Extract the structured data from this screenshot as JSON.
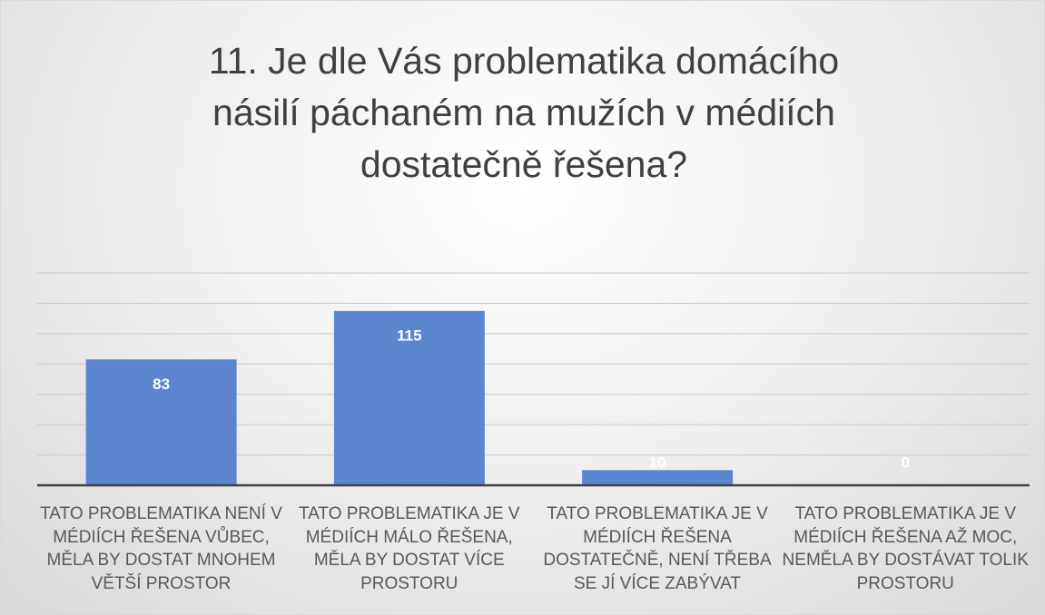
{
  "chart_data": {
    "type": "bar",
    "title": "11. Je dle Vás problematika domácího násilí páchaném na mužích v médiích dostatečně řešena?",
    "categories": [
      "TATO PROBLEMATIKA NENÍ V MÉDIÍCH ŘEŠENA  VŮBEC, MĚLA BY DOSTAT MNOHEM VĚTŠÍ PROSTOR",
      "TATO PROBLEMATIKA JE V MÉDIÍCH MÁLO ŘEŠENA, MĚLA BY DOSTAT VÍCE PROSTORU",
      "TATO PROBLEMATIKA JE V MÉDIÍCH ŘEŠENA DOSTATEČNĚ, NENÍ TŘEBA SE JÍ VÍCE ZABÝVAT",
      "TATO PROBLEMATIKA JE V MÉDIÍCH ŘEŠENA AŽ MOC, NEMĚLA BY DOSTÁVAT TOLIK PROSTORU"
    ],
    "values": [
      83,
      115,
      10,
      0
    ],
    "color": "#5b86cf",
    "ylim": [
      0,
      140
    ],
    "yticks": [
      0,
      20,
      40,
      60,
      80,
      100,
      120,
      140
    ],
    "grid": true
  }
}
